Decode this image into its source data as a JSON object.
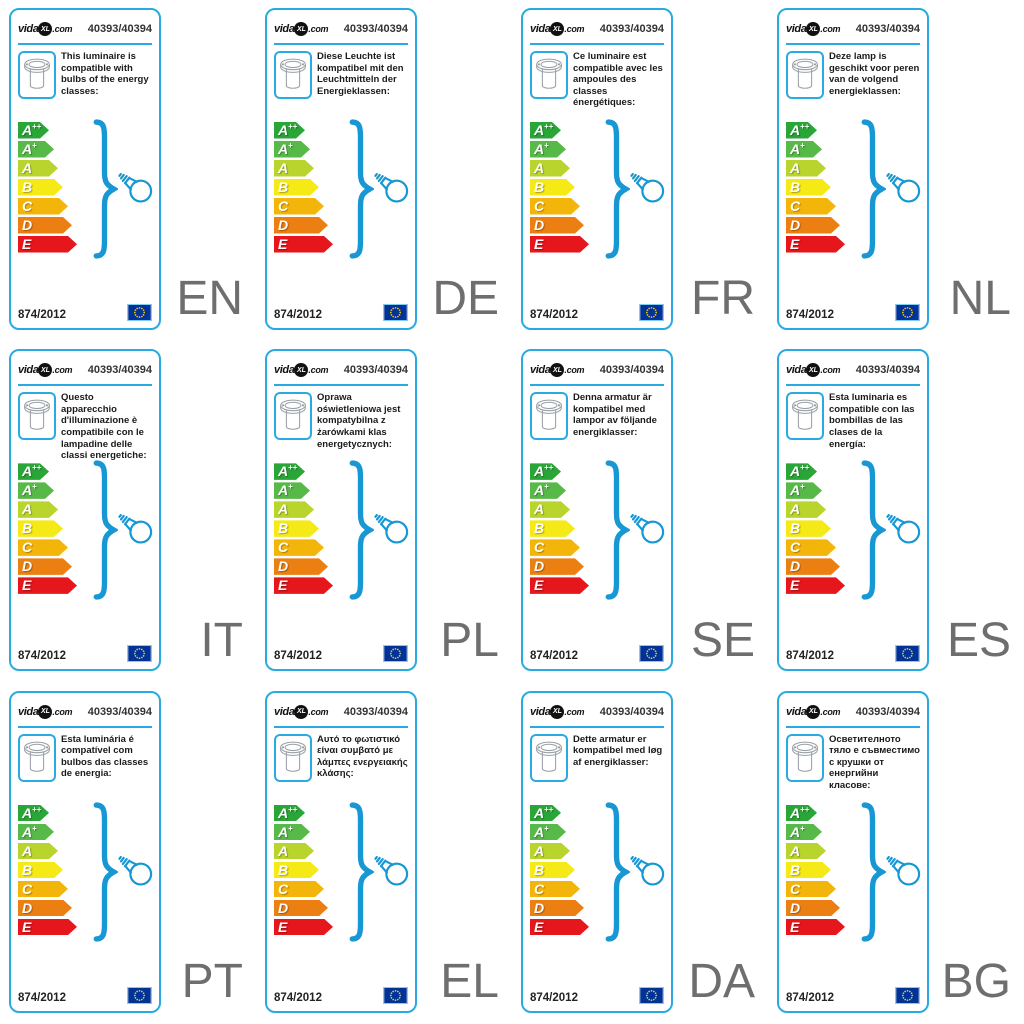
{
  "colors": {
    "accent": "#29abe2",
    "brace": "#1897d5",
    "lang_code": "#6e6e6e",
    "text": "#1a1a1a",
    "logo_black": "#111111",
    "flag_bg": "#003399",
    "flag_stars": "#ffcc00"
  },
  "logo": {
    "vida": "vida",
    "xl": "XL",
    "com": ".com"
  },
  "header": {
    "model_number": "40393/40394"
  },
  "footer": {
    "regulation": "874/2012"
  },
  "icons": {
    "luminaire": "recessed-ground-light-icon",
    "bulb": "light-bulb-icon",
    "flag": "eu-flag-icon",
    "brace": "curly-brace"
  },
  "energy_classes": [
    {
      "label": "A",
      "sup": "++",
      "color": "#29a637",
      "width": 31
    },
    {
      "label": "A",
      "sup": "+",
      "color": "#57b948",
      "width": 36
    },
    {
      "label": "A",
      "sup": "",
      "color": "#b9d42c",
      "width": 40
    },
    {
      "label": "B",
      "sup": "",
      "color": "#f5ea16",
      "width": 45
    },
    {
      "label": "C",
      "sup": "",
      "color": "#f4b50a",
      "width": 50
    },
    {
      "label": "D",
      "sup": "",
      "color": "#ec7f12",
      "width": 54
    },
    {
      "label": "E",
      "sup": "",
      "color": "#e6161d",
      "width": 59
    }
  ],
  "labels": [
    {
      "code": "EN",
      "description": "This luminaire is compatible with bulbs of the energy classes:"
    },
    {
      "code": "DE",
      "description": "Diese Leuchte ist kompatibel mit den Leuchtmitteln der Energieklassen:"
    },
    {
      "code": "FR",
      "description": "Ce luminaire est compatible avec les ampoules des classes énergétiques:"
    },
    {
      "code": "NL",
      "description": "Deze lamp is geschikt voor peren van de volgend energieklassen:"
    },
    {
      "code": "IT",
      "description": "Questo apparecchio d'illuminazione è compatibile con le lampadine delle classi energetiche:"
    },
    {
      "code": "PL",
      "description": "Oprawa oświetleniowa jest kompatybilna z żarówkami klas energetycznych:"
    },
    {
      "code": "SE",
      "description": "Denna armatur är kompatibel med lampor av följande energiklasser:"
    },
    {
      "code": "ES",
      "description": "Esta luminaria es compatible con las bombillas de las clases de la energía:"
    },
    {
      "code": "PT",
      "description": "Esta luminária é compatível com bulbos das classes de energia:"
    },
    {
      "code": "EL",
      "description": "Αυτό το φωτιστικό είναι συμβατό με λάμπες ενεργειακής κλάσης:"
    },
    {
      "code": "DA",
      "description": "Dette armatur er kompatibel med løg af energiklasser:"
    },
    {
      "code": "BG",
      "description": "Осветителното тяло е съвместимо с крушки от енергийни класове:"
    }
  ]
}
